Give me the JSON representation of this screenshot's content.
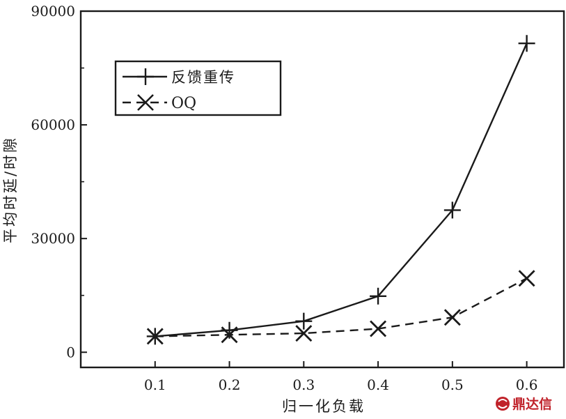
{
  "chart_data": {
    "type": "line",
    "title": "",
    "xlabel": "归一化负载",
    "ylabel": "平均时延/时隙",
    "x": [
      0.1,
      0.2,
      0.3,
      0.4,
      0.5,
      0.6
    ],
    "x_tick_labels": [
      "0.1",
      "0.2",
      "0.3",
      "0.4",
      "0.5",
      "0.6"
    ],
    "xlim": [
      0.0,
      0.65
    ],
    "ylim": [
      -4000,
      90000
    ],
    "y_ticks": [
      0,
      30000,
      60000,
      90000
    ],
    "y_tick_labels": [
      "0",
      "30000",
      "60000",
      "90000"
    ],
    "grid": false,
    "legend_position": "top-left",
    "series": [
      {
        "name": "反馈重传",
        "marker": "plus",
        "line_style": "solid",
        "color": "#1a1a1a",
        "values": [
          4200,
          5800,
          8200,
          14800,
          37500,
          81500
        ]
      },
      {
        "name": "OQ",
        "marker": "cross",
        "line_style": "dashed",
        "color": "#1a1a1a",
        "values": [
          4200,
          4600,
          5000,
          6200,
          9200,
          19500
        ]
      }
    ]
  },
  "watermark": {
    "text": "鼎达信",
    "color": "#c0222a"
  }
}
